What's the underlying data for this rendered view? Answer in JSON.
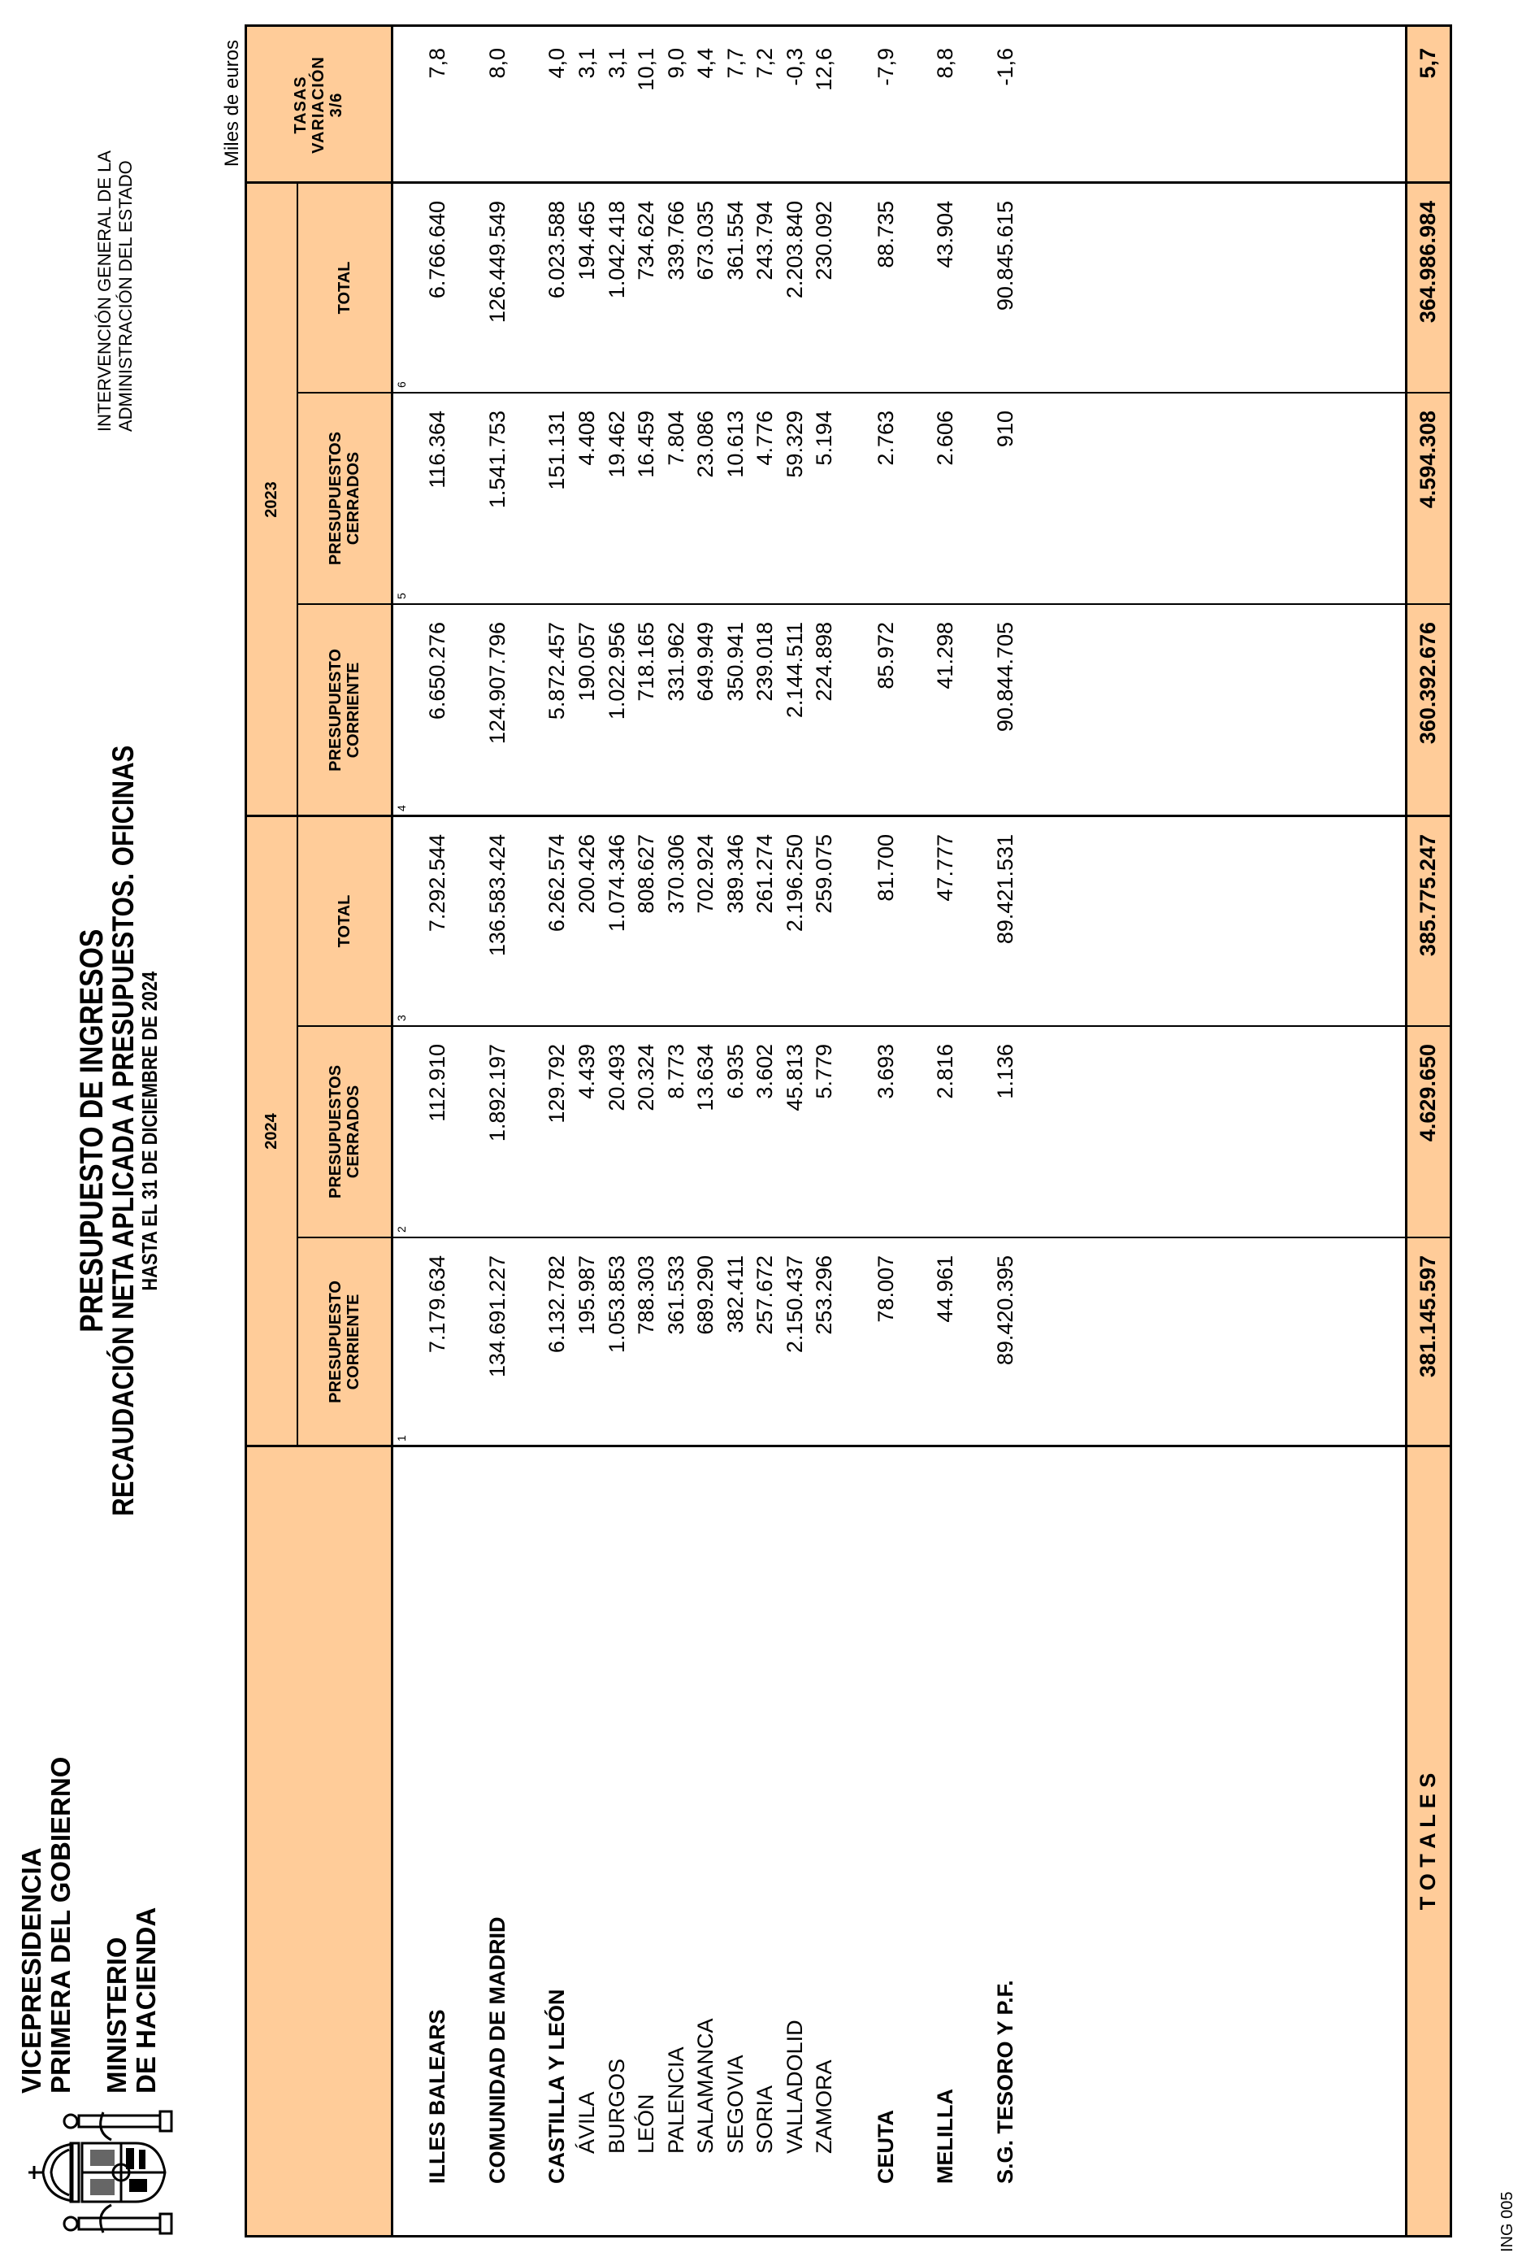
{
  "org": {
    "line1": "VICEPRESIDENCIA",
    "line2": "PRIMERA DEL GOBIERNO",
    "line3": "MINISTERIO",
    "line4": "DE HACIENDA",
    "logo_icon": "spanish-coat-of-arms"
  },
  "title": {
    "main": "PRESUPUESTO DE INGRESOS",
    "sub": "RECAUDACIÓN NETA APLICADA A PRESUPUESTOS. OFICINAS",
    "date": "HASTA EL 31 DE DICIEMBRE DE 2024"
  },
  "agency": {
    "line1": "INTERVENCIÓN GENERAL DE LA",
    "line2": "ADMINISTRACIÓN DEL ESTADO"
  },
  "units": "Miles de euros",
  "footer_code": "ING 005",
  "header_color": "#FFCC99",
  "table": {
    "year_groups": [
      "2024",
      "2023"
    ],
    "columns": [
      {
        "num": "1",
        "l1": "PRESUPUESTO",
        "l2": "CORRIENTE"
      },
      {
        "num": "2",
        "l1": "PRESUPUESTOS",
        "l2": "CERRADOS"
      },
      {
        "num": "3",
        "l1": "TOTAL",
        "l2": ""
      },
      {
        "num": "4",
        "l1": "PRESUPUESTO",
        "l2": "CORRIENTE"
      },
      {
        "num": "5",
        "l1": "PRESUPUESTOS",
        "l2": "CERRADOS"
      },
      {
        "num": "6",
        "l1": "TOTAL",
        "l2": ""
      }
    ],
    "rate_header": {
      "l1": "TASAS",
      "l2": "VARIACIÓN",
      "l3": "3/6"
    },
    "rows": [
      {
        "label": "ILLES BALEARS",
        "bold": true,
        "values": [
          "7.179.634",
          "112.910",
          "7.292.544",
          "6.650.276",
          "116.364",
          "6.766.640",
          "7,8"
        ]
      },
      {
        "label": "COMUNIDAD DE MADRID",
        "bold": true,
        "values": [
          "134.691.227",
          "1.892.197",
          "136.583.424",
          "124.907.796",
          "1.541.753",
          "126.449.549",
          "8,0"
        ]
      },
      {
        "label": "CASTILLA Y LEÓN",
        "bold": true,
        "values": [
          "6.132.782",
          "129.792",
          "6.262.574",
          "5.872.457",
          "151.131",
          "6.023.588",
          "4,0"
        ]
      },
      {
        "label": "ÁVILA",
        "bold": false,
        "values": [
          "195.987",
          "4.439",
          "200.426",
          "190.057",
          "4.408",
          "194.465",
          "3,1"
        ]
      },
      {
        "label": "BURGOS",
        "bold": false,
        "values": [
          "1.053.853",
          "20.493",
          "1.074.346",
          "1.022.956",
          "19.462",
          "1.042.418",
          "3,1"
        ]
      },
      {
        "label": "LEÓN",
        "bold": false,
        "values": [
          "788.303",
          "20.324",
          "808.627",
          "718.165",
          "16.459",
          "734.624",
          "10,1"
        ]
      },
      {
        "label": "PALENCIA",
        "bold": false,
        "values": [
          "361.533",
          "8.773",
          "370.306",
          "331.962",
          "7.804",
          "339.766",
          "9,0"
        ]
      },
      {
        "label": "SALAMANCA",
        "bold": false,
        "values": [
          "689.290",
          "13.634",
          "702.924",
          "649.949",
          "23.086",
          "673.035",
          "4,4"
        ]
      },
      {
        "label": "SEGOVIA",
        "bold": false,
        "values": [
          "382.411",
          "6.935",
          "389.346",
          "350.941",
          "10.613",
          "361.554",
          "7,7"
        ]
      },
      {
        "label": "SORIA",
        "bold": false,
        "values": [
          "257.672",
          "3.602",
          "261.274",
          "239.018",
          "4.776",
          "243.794",
          "7,2"
        ]
      },
      {
        "label": "VALLADOLID",
        "bold": false,
        "values": [
          "2.150.437",
          "45.813",
          "2.196.250",
          "2.144.511",
          "59.329",
          "2.203.840",
          "-0,3"
        ]
      },
      {
        "label": "ZAMORA",
        "bold": false,
        "values": [
          "253.296",
          "5.779",
          "259.075",
          "224.898",
          "5.194",
          "230.092",
          "12,6"
        ]
      },
      {
        "label": "CEUTA",
        "bold": true,
        "values": [
          "78.007",
          "3.693",
          "81.700",
          "85.972",
          "2.763",
          "88.735",
          "-7,9"
        ]
      },
      {
        "label": "MELILLA",
        "bold": true,
        "values": [
          "44.961",
          "2.816",
          "47.777",
          "41.298",
          "2.606",
          "43.904",
          "8,8"
        ]
      },
      {
        "label": "S.G. TESORO Y P.F.",
        "bold": true,
        "values": [
          "89.420.395",
          "1.136",
          "89.421.531",
          "90.844.705",
          "910",
          "90.845.615",
          "-1,6"
        ]
      }
    ],
    "totals": {
      "label": "T O T A L E S",
      "values": [
        "381.145.597",
        "4.629.650",
        "385.775.247",
        "360.392.676",
        "4.594.308",
        "364.986.984",
        "5,7"
      ]
    }
  }
}
